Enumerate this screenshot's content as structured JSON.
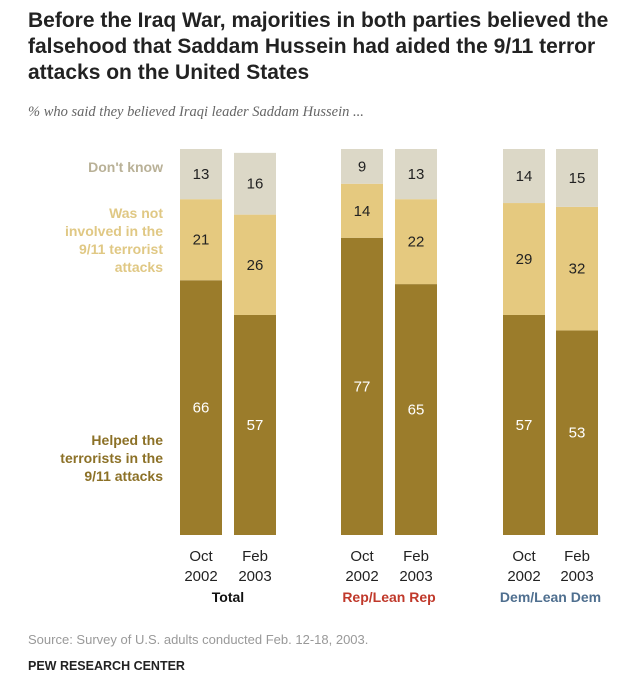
{
  "title": "Before the Iraq War, majorities in both parties believed the falsehood that Saddam Hussein had aided the 9/11 terror attacks on the United States",
  "subtitle": "% who said they believed Iraqi leader Saddam Hussein ...",
  "source": "Source: Survey of U.S. adults conducted Feb. 12-18, 2003.",
  "brand": "PEW RESEARCH CENTER",
  "chart_data": {
    "type": "stacked-bar",
    "legend_labels": {
      "dont_know": [
        "Don't know"
      ],
      "not_involved": [
        "Was not",
        "involved in the",
        "9/11 terrorist",
        "attacks"
      ],
      "helped": [
        "Helped the",
        "terrorists in the",
        "9/11 attacks"
      ]
    },
    "colors": {
      "helped": "#9b7c2b",
      "not_involved": "#e5c97f",
      "dont_know": "#dcd8c7",
      "label_helped": "#8c7127",
      "label_not_involved": "#e0c884",
      "label_dont_know": "#b9b197"
    },
    "groups": [
      {
        "name": "Total",
        "color": "#111111",
        "bars": [
          {
            "x_label": [
              "Oct",
              "2002"
            ],
            "helped": 66,
            "not_involved": 21,
            "dont_know": 13
          },
          {
            "x_label": [
              "Feb",
              "2003"
            ],
            "helped": 57,
            "not_involved": 26,
            "dont_know": 16
          }
        ]
      },
      {
        "name": "Rep/Lean Rep",
        "color": "#c0392b",
        "bars": [
          {
            "x_label": [
              "Oct",
              "2002"
            ],
            "helped": 77,
            "not_involved": 14,
            "dont_know": 9
          },
          {
            "x_label": [
              "Feb",
              "2003"
            ],
            "helped": 65,
            "not_involved": 22,
            "dont_know": 13
          }
        ]
      },
      {
        "name": "Dem/Lean Dem",
        "color": "#4f6f8f",
        "bars": [
          {
            "x_label": [
              "Oct",
              "2002"
            ],
            "helped": 57,
            "not_involved": 29,
            "dont_know": 14
          },
          {
            "x_label": [
              "Feb",
              "2003"
            ],
            "helped": 53,
            "not_involved": 32,
            "dont_know": 15
          }
        ]
      }
    ]
  }
}
